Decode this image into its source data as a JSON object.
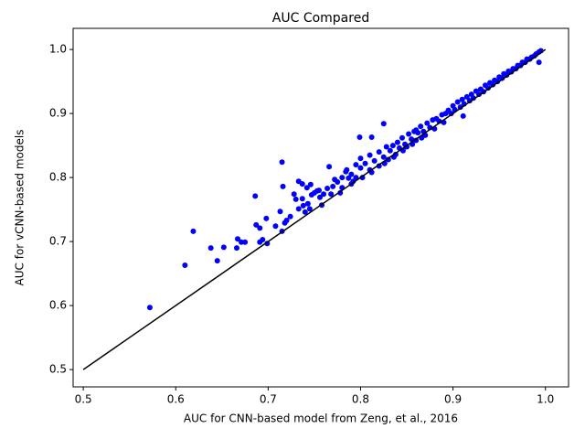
{
  "chart_data": {
    "type": "scatter",
    "title": "AUC Compared",
    "x_label": "AUC for CNN-based model from Zeng, et al., 2016",
    "y_label": "AUC for vCNN-based models",
    "xlim": [
      0.489,
      1.025
    ],
    "ylim": [
      0.473,
      1.033
    ],
    "xticks": [
      0.5,
      0.6,
      0.7,
      0.8,
      0.9,
      {
        "value": 1,
        "label": "1.0"
      }
    ],
    "yticks": [
      0.5,
      0.6,
      0.7,
      0.8,
      0.9,
      {
        "value": 1,
        "label": "1.0"
      }
    ],
    "reference_line": {
      "color": "#000000",
      "x": [
        0.5,
        1
      ],
      "values": [
        0.5,
        1
      ]
    },
    "series": [
      {
        "color": "#0000ff",
        "x": [
          0.572,
          0.61,
          0.619,
          0.638,
          0.645,
          0.652,
          0.667,
          0.666,
          0.671,
          0.675,
          0.686,
          0.687,
          0.691,
          0.691,
          0.694,
          0.698,
          0.699,
          0.708,
          0.713,
          0.715,
          0.715,
          0.716,
          0.718,
          0.72,
          0.724,
          0.728,
          0.73,
          0.733,
          0.733,
          0.737,
          0.737,
          0.738,
          0.74,
          0.742,
          0.743,
          0.745,
          0.746,
          0.747,
          0.75,
          0.753,
          0.755,
          0.756,
          0.758,
          0.76,
          0.764,
          0.766,
          0.768,
          0.77,
          0.772,
          0.775,
          0.778,
          0.78,
          0.784,
          0.787,
          0.792,
          0.799,
          0.812,
          0.825,
          0.86,
          0.911,
          0.993,
          0.78,
          0.785,
          0.79,
          0.795,
          0.8,
          0.8,
          0.805,
          0.81,
          0.81,
          0.815,
          0.82,
          0.82,
          0.825,
          0.828,
          0.83,
          0.832,
          0.835,
          0.838,
          0.84,
          0.842,
          0.845,
          0.848,
          0.85,
          0.852,
          0.855,
          0.858,
          0.86,
          0.862,
          0.865,
          0.868,
          0.87,
          0.872,
          0.875,
          0.878,
          0.88,
          0.882,
          0.885,
          0.888,
          0.89,
          0.892,
          0.895,
          0.898,
          0.9,
          0.902,
          0.905,
          0.908,
          0.91,
          0.912,
          0.915,
          0.918,
          0.92,
          0.922,
          0.925,
          0.928,
          0.93,
          0.933,
          0.935,
          0.938,
          0.94,
          0.943,
          0.945,
          0.948,
          0.95,
          0.953,
          0.955,
          0.958,
          0.96,
          0.963,
          0.965,
          0.968,
          0.97,
          0.973,
          0.975,
          0.978,
          0.98,
          0.983,
          0.985,
          0.988,
          0.99,
          0.993,
          0.995,
          0.812,
          0.826,
          0.836,
          0.846,
          0.856,
          0.866,
          0.802,
          0.79,
          0.795
        ],
        "values": [
          0.597,
          0.663,
          0.716,
          0.69,
          0.67,
          0.691,
          0.704,
          0.69,
          0.699,
          0.699,
          0.771,
          0.726,
          0.721,
          0.699,
          0.703,
          0.736,
          0.697,
          0.724,
          0.747,
          0.824,
          0.716,
          0.786,
          0.729,
          0.733,
          0.739,
          0.774,
          0.766,
          0.794,
          0.751,
          0.79,
          0.767,
          0.756,
          0.746,
          0.784,
          0.759,
          0.751,
          0.789,
          0.773,
          0.776,
          0.779,
          0.78,
          0.769,
          0.757,
          0.774,
          0.783,
          0.817,
          0.774,
          0.786,
          0.797,
          0.793,
          0.776,
          0.784,
          0.809,
          0.799,
          0.794,
          0.863,
          0.863,
          0.884,
          0.874,
          0.896,
          0.98,
          0.8,
          0.812,
          0.805,
          0.82,
          0.815,
          0.83,
          0.822,
          0.812,
          0.835,
          0.826,
          0.818,
          0.84,
          0.832,
          0.848,
          0.828,
          0.842,
          0.85,
          0.836,
          0.855,
          0.846,
          0.862,
          0.852,
          0.848,
          0.868,
          0.86,
          0.872,
          0.858,
          0.87,
          0.88,
          0.872,
          0.866,
          0.885,
          0.878,
          0.89,
          0.876,
          0.892,
          0.888,
          0.898,
          0.886,
          0.9,
          0.905,
          0.9,
          0.912,
          0.906,
          0.918,
          0.91,
          0.922,
          0.915,
          0.926,
          0.92,
          0.93,
          0.924,
          0.935,
          0.93,
          0.938,
          0.934,
          0.944,
          0.94,
          0.948,
          0.945,
          0.952,
          0.95,
          0.957,
          0.955,
          0.962,
          0.96,
          0.966,
          0.965,
          0.97,
          0.97,
          0.975,
          0.975,
          0.98,
          0.98,
          0.985,
          0.985,
          0.988,
          0.99,
          0.993,
          0.996,
          0.998,
          0.808,
          0.822,
          0.832,
          0.842,
          0.852,
          0.862,
          0.8,
          0.79,
          0.8
        ]
      }
    ]
  }
}
